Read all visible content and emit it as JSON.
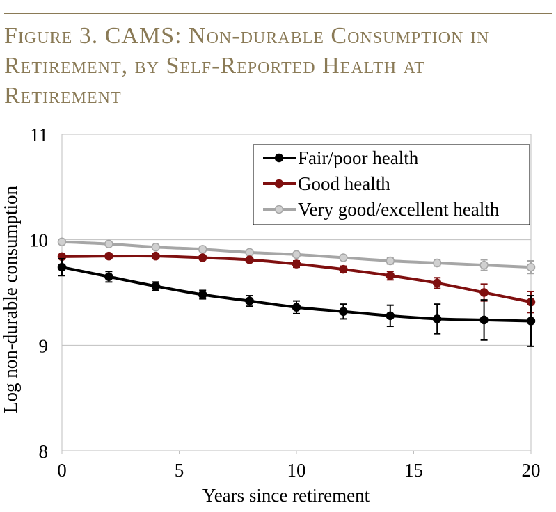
{
  "figure": {
    "title": "Figure 3. CAMS: Non-durable Consumption in Retirement, by Self-Reported Health at Retirement"
  },
  "colors": {
    "title": "#8a7a56",
    "fair_poor": "#000000",
    "good": "#7f0f0f",
    "very_good_excellent": "#a6a6a6"
  },
  "chart_data": {
    "type": "line",
    "title": "",
    "xlabel": "Years since retirement",
    "ylabel": "Log non-durable consumption",
    "xlim": [
      0,
      20
    ],
    "ylim": [
      8,
      11
    ],
    "x_ticks": [
      0,
      5,
      10,
      15,
      20
    ],
    "y_ticks": [
      8,
      9,
      10,
      11
    ],
    "grid": "horizontal",
    "legend_position": "top-right",
    "x": [
      0,
      2,
      4,
      6,
      8,
      10,
      12,
      14,
      16,
      18,
      20
    ],
    "series": [
      {
        "name": "Fair/poor health",
        "color": "#000000",
        "marker_fill": "#000000",
        "values": [
          9.74,
          9.65,
          9.56,
          9.48,
          9.42,
          9.36,
          9.32,
          9.28,
          9.25,
          9.24,
          9.23
        ],
        "error": [
          0.08,
          0.05,
          0.04,
          0.04,
          0.05,
          0.06,
          0.07,
          0.1,
          0.14,
          0.19,
          0.24
        ]
      },
      {
        "name": "Good health",
        "color": "#7f0f0f",
        "marker_fill": "#7f0f0f",
        "values": [
          9.84,
          9.845,
          9.845,
          9.83,
          9.81,
          9.77,
          9.72,
          9.66,
          9.59,
          9.5,
          9.41
        ],
        "error": [
          0.02,
          0.02,
          0.02,
          0.02,
          0.02,
          0.03,
          0.03,
          0.04,
          0.05,
          0.08,
          0.1
        ]
      },
      {
        "name": "Very good/excellent health",
        "color": "#a6a6a6",
        "marker_fill": "#d0d0d0",
        "values": [
          9.98,
          9.96,
          9.93,
          9.91,
          9.88,
          9.86,
          9.83,
          9.8,
          9.78,
          9.76,
          9.74
        ],
        "error": [
          0.01,
          0.01,
          0.01,
          0.01,
          0.02,
          0.02,
          0.02,
          0.03,
          0.03,
          0.05,
          0.06
        ]
      }
    ]
  }
}
